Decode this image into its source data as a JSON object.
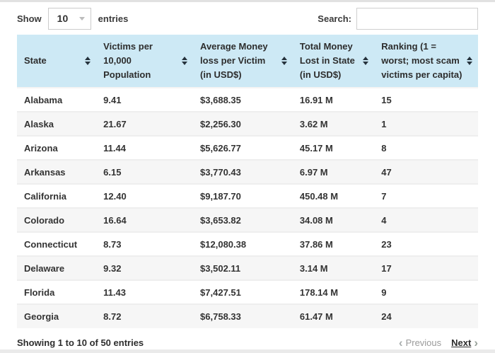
{
  "colors": {
    "header_bg": "#cde9f5",
    "row_alt_bg": "#f6f6f6",
    "text": "#333333",
    "disabled_text": "#9b9b9b",
    "border": "#cccccc"
  },
  "controls": {
    "show_label": "Show",
    "page_length_value": "10",
    "entries_label": "entries",
    "search_label": "Search:",
    "search_value": ""
  },
  "table": {
    "columns": [
      {
        "key": "state",
        "label": "State"
      },
      {
        "key": "victims_per_10000",
        "label": "Victims per 10,000 Population"
      },
      {
        "key": "avg_loss_per_victim",
        "label": "Average Money loss per Victim (in USD$)"
      },
      {
        "key": "total_lost",
        "label": "Total Money Lost in State (in USD$)"
      },
      {
        "key": "ranking",
        "label": "Ranking (1 = worst; most scam victims per capita)"
      }
    ],
    "rows": [
      {
        "state": "Alabama",
        "victims_per_10000": "9.41",
        "avg_loss_per_victim": "$3,688.35",
        "total_lost": "16.91 M",
        "ranking": "15"
      },
      {
        "state": "Alaska",
        "victims_per_10000": "21.67",
        "avg_loss_per_victim": "$2,256.30",
        "total_lost": "3.62 M",
        "ranking": "1"
      },
      {
        "state": "Arizona",
        "victims_per_10000": "11.44",
        "avg_loss_per_victim": "$5,626.77",
        "total_lost": "45.17 M",
        "ranking": "8"
      },
      {
        "state": "Arkansas",
        "victims_per_10000": "6.15",
        "avg_loss_per_victim": "$3,770.43",
        "total_lost": "6.97 M",
        "ranking": "47"
      },
      {
        "state": "California",
        "victims_per_10000": "12.40",
        "avg_loss_per_victim": "$9,187.70",
        "total_lost": "450.48 M",
        "ranking": "7"
      },
      {
        "state": "Colorado",
        "victims_per_10000": "16.64",
        "avg_loss_per_victim": "$3,653.82",
        "total_lost": "34.08 M",
        "ranking": "4"
      },
      {
        "state": "Connecticut",
        "victims_per_10000": "8.73",
        "avg_loss_per_victim": "$12,080.38",
        "total_lost": "37.86 M",
        "ranking": "23"
      },
      {
        "state": "Delaware",
        "victims_per_10000": "9.32",
        "avg_loss_per_victim": "$3,502.11",
        "total_lost": "3.14 M",
        "ranking": "17"
      },
      {
        "state": "Florida",
        "victims_per_10000": "11.43",
        "avg_loss_per_victim": "$7,427.51",
        "total_lost": "178.14 M",
        "ranking": "9"
      },
      {
        "state": "Georgia",
        "victims_per_10000": "8.72",
        "avg_loss_per_victim": "$6,758.33",
        "total_lost": "61.47 M",
        "ranking": "24"
      }
    ]
  },
  "footer": {
    "info": "Showing 1 to 10 of 50 entries",
    "previous_label": "Previous",
    "next_label": "Next",
    "previous_chevron": "‹",
    "next_chevron": "›"
  }
}
